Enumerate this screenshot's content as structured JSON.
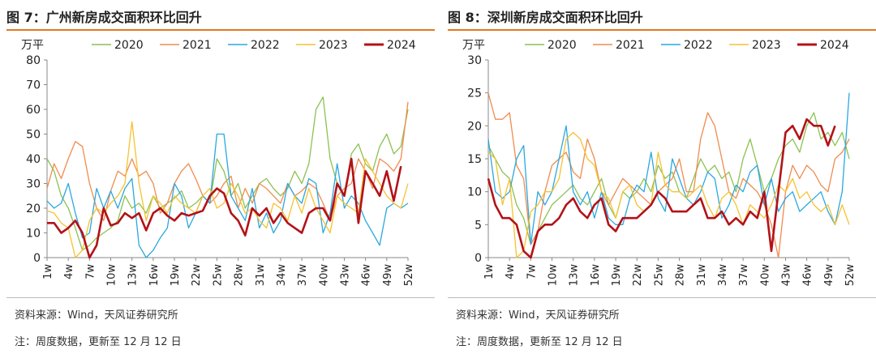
{
  "legend_colors": {
    "2020": "#8cc152",
    "2021": "#ef8c4e",
    "2022": "#2aa8e0",
    "2023": "#f6c231",
    "2024": "#b31218"
  },
  "panels": [
    {
      "title": "图 7：广州新房成交面积环比回升",
      "source": "资料来源：Wind，天风证券研究所",
      "note": "注：周度数据，更新至 12 月 12 日"
    },
    {
      "title": "图 8：深圳新房成交面积环比回升",
      "source": "资料来源：Wind，天风证券研究所",
      "note": "注：周度数据，更新至 12 月 12 日"
    }
  ],
  "chart_data": [
    {
      "type": "line",
      "title": "图 7：广州新房成交面积环比回升",
      "ylabel": "万平",
      "ylim": [
        0,
        80
      ],
      "yticks": [
        0,
        10,
        20,
        30,
        40,
        50,
        60,
        70,
        80
      ],
      "xlim": [
        1,
        52
      ],
      "xticks": [
        "1w",
        "4w",
        "7w",
        "10w",
        "13w",
        "16w",
        "19w",
        "22w",
        "25w",
        "28w",
        "31w",
        "34w",
        "37w",
        "40w",
        "43w",
        "46w",
        "49w",
        "52w"
      ],
      "legend": "top",
      "series": [
        {
          "name": "2020",
          "values": [
            40,
            35,
            25,
            20,
            12,
            3,
            5,
            8,
            10,
            12,
            15,
            25,
            20,
            22,
            18,
            25,
            20,
            22,
            24,
            27,
            20,
            22,
            25,
            22,
            40,
            35,
            25,
            30,
            20,
            25,
            30,
            32,
            28,
            25,
            28,
            35,
            30,
            38,
            60,
            65,
            40,
            30,
            25,
            42,
            46,
            38,
            35,
            45,
            50,
            42,
            45,
            60
          ]
        },
        {
          "name": "2021",
          "values": [
            28,
            38,
            32,
            40,
            47,
            45,
            30,
            20,
            15,
            27,
            35,
            33,
            40,
            33,
            35,
            30,
            18,
            22,
            30,
            35,
            38,
            32,
            25,
            22,
            25,
            30,
            33,
            20,
            28,
            22,
            30,
            28,
            25,
            22,
            30,
            25,
            27,
            30,
            28,
            22,
            15,
            25,
            28,
            30,
            40,
            35,
            28,
            40,
            38,
            35,
            40,
            63
          ]
        },
        {
          "name": "2022",
          "values": [
            23,
            20,
            22,
            30,
            18,
            8,
            10,
            28,
            20,
            27,
            20,
            28,
            32,
            5,
            0,
            3,
            8,
            12,
            30,
            25,
            12,
            18,
            25,
            22,
            50,
            50,
            25,
            20,
            15,
            28,
            12,
            18,
            10,
            15,
            30,
            25,
            22,
            32,
            30,
            10,
            18,
            38,
            20,
            25,
            22,
            15,
            10,
            5,
            20,
            22,
            20,
            22
          ]
        },
        {
          "name": "2023",
          "values": [
            19,
            18,
            14,
            12,
            0,
            3,
            15,
            20,
            18,
            22,
            25,
            30,
            55,
            30,
            15,
            25,
            22,
            18,
            25,
            22,
            20,
            18,
            25,
            28,
            20,
            22,
            30,
            25,
            18,
            20,
            15,
            12,
            22,
            20,
            15,
            25,
            18,
            28,
            20,
            15,
            10,
            25,
            22,
            20,
            18,
            40,
            35,
            30,
            25,
            22,
            20,
            30
          ]
        },
        {
          "name": "2024",
          "values": [
            14,
            14,
            10,
            12,
            15,
            10,
            0,
            5,
            20,
            13,
            14,
            18,
            16,
            18,
            11,
            18,
            20,
            17,
            15,
            18,
            17,
            18,
            19,
            25,
            28,
            26,
            18,
            15,
            9,
            20,
            17,
            20,
            14,
            18,
            14,
            12,
            10,
            18,
            20,
            20,
            15,
            30,
            25,
            40,
            14,
            35,
            30,
            25,
            35,
            23,
            37,
            null
          ]
        }
      ]
    },
    {
      "type": "line",
      "title": "图 8：深圳新房成交面积环比回升",
      "ylabel": "万平",
      "ylim": [
        0,
        30
      ],
      "yticks": [
        0,
        5,
        10,
        15,
        20,
        25,
        30
      ],
      "xlim": [
        1,
        52
      ],
      "xticks": [
        "1w",
        "4w",
        "7w",
        "10w",
        "13w",
        "16w",
        "19w",
        "22w",
        "25w",
        "28w",
        "31w",
        "34w",
        "37w",
        "40w",
        "43w",
        "46w",
        "49w",
        "52w"
      ],
      "legend": "top",
      "series": [
        {
          "name": "2020",
          "values": [
            17,
            15,
            13,
            12,
            8,
            6,
            2,
            4,
            6,
            8,
            9,
            10,
            11,
            9,
            8,
            10,
            12,
            8,
            6,
            10,
            9,
            10,
            12,
            10,
            14,
            12,
            13,
            10,
            9,
            12,
            15,
            13,
            14,
            12,
            13,
            10,
            15,
            18,
            14,
            10,
            12,
            15,
            17,
            18,
            16,
            20,
            22,
            18,
            19,
            17,
            19,
            15
          ]
        },
        {
          "name": "2021",
          "values": [
            25,
            21,
            21,
            22,
            14,
            12,
            2,
            4,
            10,
            14,
            15,
            16,
            13,
            12,
            18,
            15,
            10,
            8,
            10,
            12,
            11,
            10,
            9,
            8,
            10,
            11,
            12,
            15,
            10,
            10,
            18,
            22,
            20,
            15,
            10,
            9,
            12,
            11,
            10,
            8,
            5,
            0,
            10,
            14,
            12,
            14,
            13,
            11,
            10,
            15,
            16,
            18
          ]
        },
        {
          "name": "2022",
          "values": [
            18,
            10,
            9,
            10,
            15,
            17,
            2,
            10,
            8,
            10,
            15,
            20,
            10,
            8,
            10,
            6,
            10,
            6,
            5,
            5,
            9,
            11,
            10,
            16,
            9,
            7,
            15,
            12,
            9,
            8,
            10,
            13,
            12,
            6,
            8,
            11,
            10,
            13,
            14,
            8,
            12,
            7,
            9,
            10,
            7,
            8,
            9,
            10,
            7,
            5,
            10,
            25
          ]
        },
        {
          "name": "2023",
          "values": [
            16,
            15,
            8,
            12,
            0,
            1,
            7,
            8,
            10,
            10,
            12,
            18,
            19,
            18,
            15,
            14,
            10,
            9,
            6,
            10,
            11,
            8,
            7,
            8,
            16,
            11,
            10,
            10,
            9,
            10,
            11,
            8,
            6,
            9,
            10,
            8,
            5,
            8,
            7,
            6,
            8,
            11,
            10,
            12,
            9,
            10,
            8,
            7,
            8,
            5,
            8,
            5
          ]
        },
        {
          "name": "2024",
          "values": [
            12,
            8,
            6,
            6,
            5,
            1,
            0,
            4,
            5,
            5,
            6,
            8,
            9,
            7,
            6,
            8,
            9,
            5,
            4,
            6,
            6,
            6,
            7,
            8,
            10,
            9,
            7,
            7,
            7,
            8,
            9,
            6,
            6,
            7,
            5,
            6,
            5,
            7,
            6,
            10,
            1,
            10,
            19,
            20,
            18,
            21,
            20,
            20,
            17,
            20,
            null,
            null
          ]
        }
      ]
    }
  ]
}
